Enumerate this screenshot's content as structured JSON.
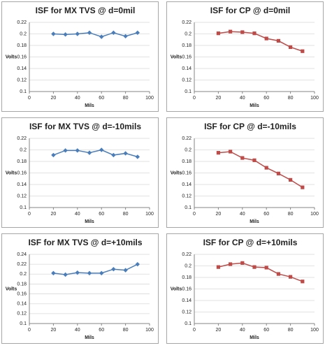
{
  "chart_data": [
    {
      "type": "line",
      "title": "ISF for MX TVS @ d=0mil",
      "x_label": "Mils",
      "y_label": "Volts",
      "x": [
        20,
        30,
        40,
        50,
        60,
        70,
        80,
        90
      ],
      "values": [
        0.2,
        0.199,
        0.2,
        0.202,
        0.195,
        0.202,
        0.196,
        0.202
      ],
      "color": "#4a7ebb",
      "marker": "diamond",
      "xlim": [
        0,
        100
      ],
      "xticks": [
        0,
        20,
        40,
        60,
        80,
        100
      ],
      "ylim": [
        0.1,
        0.22
      ],
      "yticks": [
        0.1,
        0.12,
        0.14,
        0.16,
        0.18,
        0.2,
        0.22
      ],
      "grid": true
    },
    {
      "type": "line",
      "title": "ISF for CP @ d=0mil",
      "x_label": "Mils",
      "y_label": "Volts",
      "x": [
        20,
        30,
        40,
        50,
        60,
        70,
        80,
        90
      ],
      "values": [
        0.201,
        0.204,
        0.203,
        0.201,
        0.192,
        0.188,
        0.177,
        0.17
      ],
      "color": "#be4b48",
      "marker": "square",
      "xlim": [
        0,
        100
      ],
      "xticks": [
        0,
        20,
        40,
        60,
        80,
        100
      ],
      "ylim": [
        0.1,
        0.22
      ],
      "yticks": [
        0.1,
        0.12,
        0.14,
        0.16,
        0.18,
        0.2,
        0.22
      ],
      "grid": true
    },
    {
      "type": "line",
      "title": "ISF for MX TVS @ d=-10mils",
      "x_label": "Mils",
      "y_label": "Volts",
      "x": [
        20,
        30,
        40,
        50,
        60,
        70,
        80,
        90
      ],
      "values": [
        0.191,
        0.199,
        0.199,
        0.195,
        0.2,
        0.191,
        0.194,
        0.188
      ],
      "color": "#4a7ebb",
      "marker": "diamond",
      "xlim": [
        0,
        100
      ],
      "xticks": [
        0,
        20,
        40,
        60,
        80,
        100
      ],
      "ylim": [
        0.1,
        0.22
      ],
      "yticks": [
        0.1,
        0.12,
        0.14,
        0.16,
        0.18,
        0.2,
        0.22
      ],
      "grid": true
    },
    {
      "type": "line",
      "title": "ISF for CP @ d=-10mils",
      "x_label": "Mils",
      "y_label": "Volts",
      "x": [
        20,
        30,
        40,
        50,
        60,
        70,
        80,
        90
      ],
      "values": [
        0.195,
        0.197,
        0.186,
        0.182,
        0.169,
        0.159,
        0.148,
        0.135
      ],
      "color": "#be4b48",
      "marker": "square",
      "xlim": [
        0,
        100
      ],
      "xticks": [
        0,
        20,
        40,
        60,
        80,
        100
      ],
      "ylim": [
        0.1,
        0.22
      ],
      "yticks": [
        0.1,
        0.12,
        0.14,
        0.16,
        0.18,
        0.2,
        0.22
      ],
      "grid": true
    },
    {
      "type": "line",
      "title": "ISF for MX TVS @ d=+10mils",
      "x_label": "Mils",
      "y_label": "Volts",
      "x": [
        20,
        30,
        40,
        50,
        60,
        70,
        80,
        90
      ],
      "values": [
        0.202,
        0.199,
        0.203,
        0.202,
        0.202,
        0.21,
        0.208,
        0.22
      ],
      "color": "#4a7ebb",
      "marker": "diamond",
      "xlim": [
        0,
        100
      ],
      "xticks": [
        0,
        20,
        40,
        60,
        80,
        100
      ],
      "ylim": [
        0.1,
        0.24
      ],
      "yticks": [
        0.1,
        0.12,
        0.14,
        0.16,
        0.18,
        0.2,
        0.22,
        0.24
      ],
      "grid": true
    },
    {
      "type": "line",
      "title": "ISF for CP @ d=+10mils",
      "x_label": "Mils",
      "y_label": "Volts",
      "x": [
        20,
        30,
        40,
        50,
        60,
        70,
        80,
        90
      ],
      "values": [
        0.198,
        0.203,
        0.205,
        0.198,
        0.197,
        0.186,
        0.181,
        0.173
      ],
      "color": "#be4b48",
      "marker": "square",
      "xlim": [
        0,
        100
      ],
      "xticks": [
        0,
        20,
        40,
        60,
        80,
        100
      ],
      "ylim": [
        0.1,
        0.22
      ],
      "yticks": [
        0.1,
        0.12,
        0.14,
        0.16,
        0.18,
        0.2,
        0.22
      ],
      "grid": true
    }
  ]
}
